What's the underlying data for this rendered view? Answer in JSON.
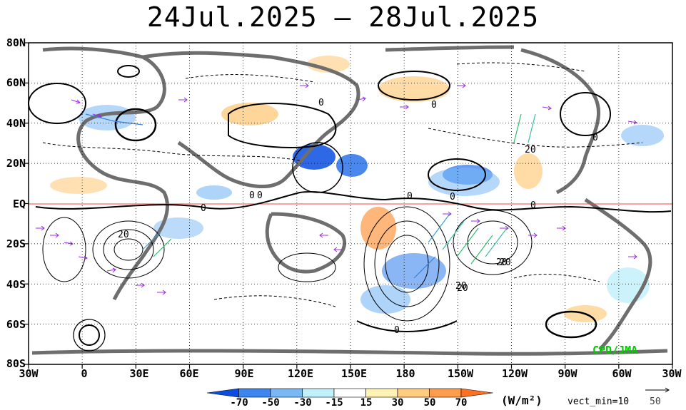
{
  "title": "24Jul.2025 – 28Jul.2025",
  "lat_labels": [
    "80N",
    "60N",
    "40N",
    "20N",
    "EQ",
    "20S",
    "40S",
    "60S",
    "80S"
  ],
  "lon_labels": [
    "30W",
    "0",
    "30E",
    "60E",
    "90E",
    "120E",
    "150E",
    "180",
    "150W",
    "120W",
    "90W",
    "60W",
    "30W"
  ],
  "contour_labels": [
    "0",
    "0",
    "0",
    "0",
    "0",
    "0",
    "0",
    "0",
    "0",
    "0",
    "20",
    "20",
    "20",
    "20",
    "20",
    "20",
    "0",
    "0"
  ],
  "colorbar": {
    "labels": [
      "-70",
      "-50",
      "-30",
      "-15",
      "15",
      "30",
      "50",
      "70"
    ],
    "colors": [
      "#0a4de0",
      "#3d85ef",
      "#79b8f5",
      "#bff0fb",
      "#ffffff",
      "#fff2b3",
      "#ffcc80",
      "#ff9d4d",
      "#ff7020"
    ]
  },
  "units": "(W/m²)",
  "vect_min": "vect_min=10",
  "ref_vector": "50",
  "credit": "CPD/JMA",
  "colors": {
    "land": "#6e6e6e",
    "equator": "#ff4040",
    "vector": "#9b2de0",
    "credit": "#00cc00"
  }
}
